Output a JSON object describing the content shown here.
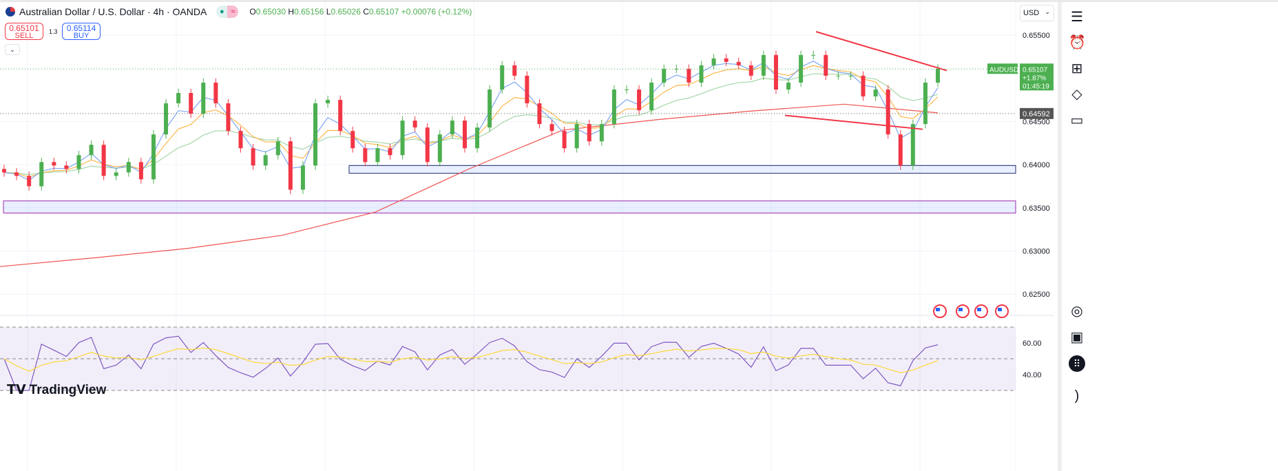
{
  "header": {
    "symbol_title": "Australian Dollar / U.S. Dollar · 4h · OANDA",
    "ohlc": {
      "o_label": "O",
      "o": "0.65030",
      "h_label": "H",
      "h": "0.65156",
      "l_label": "L",
      "l": "0.65026",
      "c_label": "C",
      "c": "0.65107",
      "change": "+0.00076 (+0.12%)"
    }
  },
  "trade": {
    "sell_price": "0.65101",
    "sell_label": "SELL",
    "spread": "1.3",
    "buy_price": "0.65114",
    "buy_label": "BUY"
  },
  "currency_select": "USD",
  "price_axis": {
    "ticks": [
      "0.65500",
      "0.64500",
      "0.64000",
      "0.63500",
      "0.63000",
      "0.62500"
    ],
    "tick_values": [
      0.655,
      0.645,
      0.64,
      0.635,
      0.63,
      0.625
    ]
  },
  "last_price_label": {
    "symbol": "AUDUSD",
    "price": "0.65107",
    "change": "+1.87%",
    "countdown": "01:45:19",
    "color": "#4caf50"
  },
  "ref_price_label": {
    "price": "0.64592",
    "value": 0.64592
  },
  "rsi_axis": {
    "ticks": [
      "60.00",
      "40.00"
    ]
  },
  "colors": {
    "up": "#4caf50",
    "down": "#f23645",
    "ma_fast": "#7ea6f3",
    "ma_mid": "#ffb74d",
    "ma_slow": "#a5d6a7",
    "ma_long": "#ef5350",
    "trendline": "#f23645",
    "rsi": "#7e57c2",
    "rsi_ma": "#fdd835",
    "zone": "#2962ff"
  },
  "chart_data": {
    "type": "candlestick",
    "closes": [
      0.6391,
      0.6387,
      0.6375,
      0.6403,
      0.6399,
      0.6395,
      0.6411,
      0.6423,
      0.6387,
      0.6391,
      0.6403,
      0.6383,
      0.6435,
      0.6471,
      0.6483,
      0.6459,
      0.6495,
      0.6471,
      0.6439,
      0.6419,
      0.6399,
      0.6411,
      0.6427,
      0.6371,
      0.6399,
      0.6471,
      0.6475,
      0.6439,
      0.6419,
      0.6403,
      0.6419,
      0.6411,
      0.6451,
      0.6443,
      0.6403,
      0.6435,
      0.6451,
      0.6419,
      0.6443,
      0.6487,
      0.6515,
      0.6503,
      0.6471,
      0.6447,
      0.6439,
      0.6419,
      0.6447,
      0.6427,
      0.6447,
      0.6487,
      0.6487,
      0.6463,
      0.6495,
      0.6511,
      0.6511,
      0.6495,
      0.6515,
      0.6523,
      0.6519,
      0.6515,
      0.6503,
      0.6527,
      0.6487,
      0.6495,
      0.6527,
      0.6527,
      0.6503,
      0.6503,
      0.6503,
      0.6479,
      0.6487,
      0.6435,
      0.6399,
      0.6447,
      0.6495,
      0.6511
    ],
    "ma_long": [
      0.6282,
      0.6292,
      0.6303,
      0.6318,
      0.6345,
      0.6395,
      0.644,
      0.6452,
      0.6462,
      0.647,
      0.646
    ],
    "zones": [
      [
        0.6399,
        0.639
      ],
      [
        0.6358,
        0.6344
      ]
    ],
    "trendlines": {
      "upper": [
        0.6554,
        0.6509
      ],
      "lower": [
        0.6457,
        0.6441
      ]
    },
    "rsi_range": [
      30,
      70
    ]
  },
  "logo_text": "TradingView"
}
